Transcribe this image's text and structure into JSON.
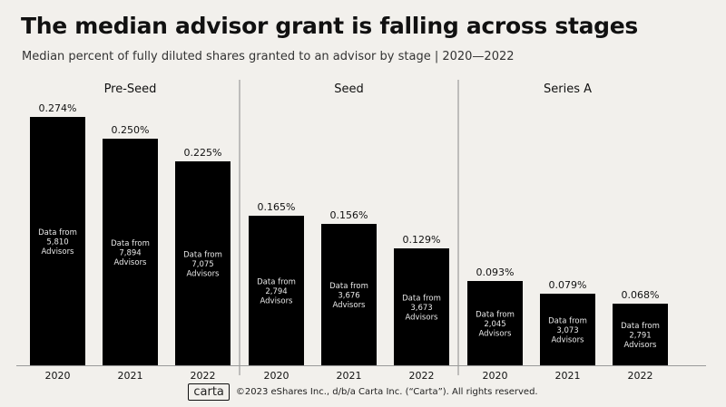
{
  "header": {
    "title": "The median advisor grant is falling across stages",
    "subtitle": "Median percent of fully diluted shares granted to an advisor by stage | 2020—2022"
  },
  "footer": {
    "logo": "carta",
    "copyright": "©2023 eShares Inc., d/b/a Carta Inc. (“Carta”). All rights reserved."
  },
  "chart_data": {
    "type": "bar",
    "ylim": [
      0,
      0.3
    ],
    "grid": false,
    "colors": {
      "bar": "#000000",
      "background": "#f2f0ec",
      "divider": "#8a8a8a"
    },
    "groups": [
      {
        "name": "Pre-Seed",
        "bars": [
          {
            "year": "2020",
            "value": 0.274,
            "label": "0.274%",
            "note": [
              "Data from",
              "5,810",
              "Advisors"
            ]
          },
          {
            "year": "2021",
            "value": 0.25,
            "label": "0.250%",
            "note": [
              "Data from",
              "7,894",
              "Advisors"
            ]
          },
          {
            "year": "2022",
            "value": 0.225,
            "label": "0.225%",
            "note": [
              "Data from",
              "7,075",
              "Advisors"
            ]
          }
        ]
      },
      {
        "name": "Seed",
        "bars": [
          {
            "year": "2020",
            "value": 0.165,
            "label": "0.165%",
            "note": [
              "Data from",
              "2,794",
              "Advisors"
            ]
          },
          {
            "year": "2021",
            "value": 0.156,
            "label": "0.156%",
            "note": [
              "Data from",
              "3,676",
              "Advisors"
            ]
          },
          {
            "year": "2022",
            "value": 0.129,
            "label": "0.129%",
            "note": [
              "Data from",
              "3,673",
              "Advisors"
            ]
          }
        ]
      },
      {
        "name": "Series A",
        "bars": [
          {
            "year": "2020",
            "value": 0.093,
            "label": "0.093%",
            "note": [
              "Data from",
              "2,045",
              "Advisors"
            ]
          },
          {
            "year": "2021",
            "value": 0.079,
            "label": "0.079%",
            "note": [
              "Data from",
              "3,073",
              "Advisors"
            ]
          },
          {
            "year": "2022",
            "value": 0.068,
            "label": "0.068%",
            "note": [
              "Data from",
              "2,791",
              "Advisors"
            ]
          }
        ]
      }
    ]
  }
}
